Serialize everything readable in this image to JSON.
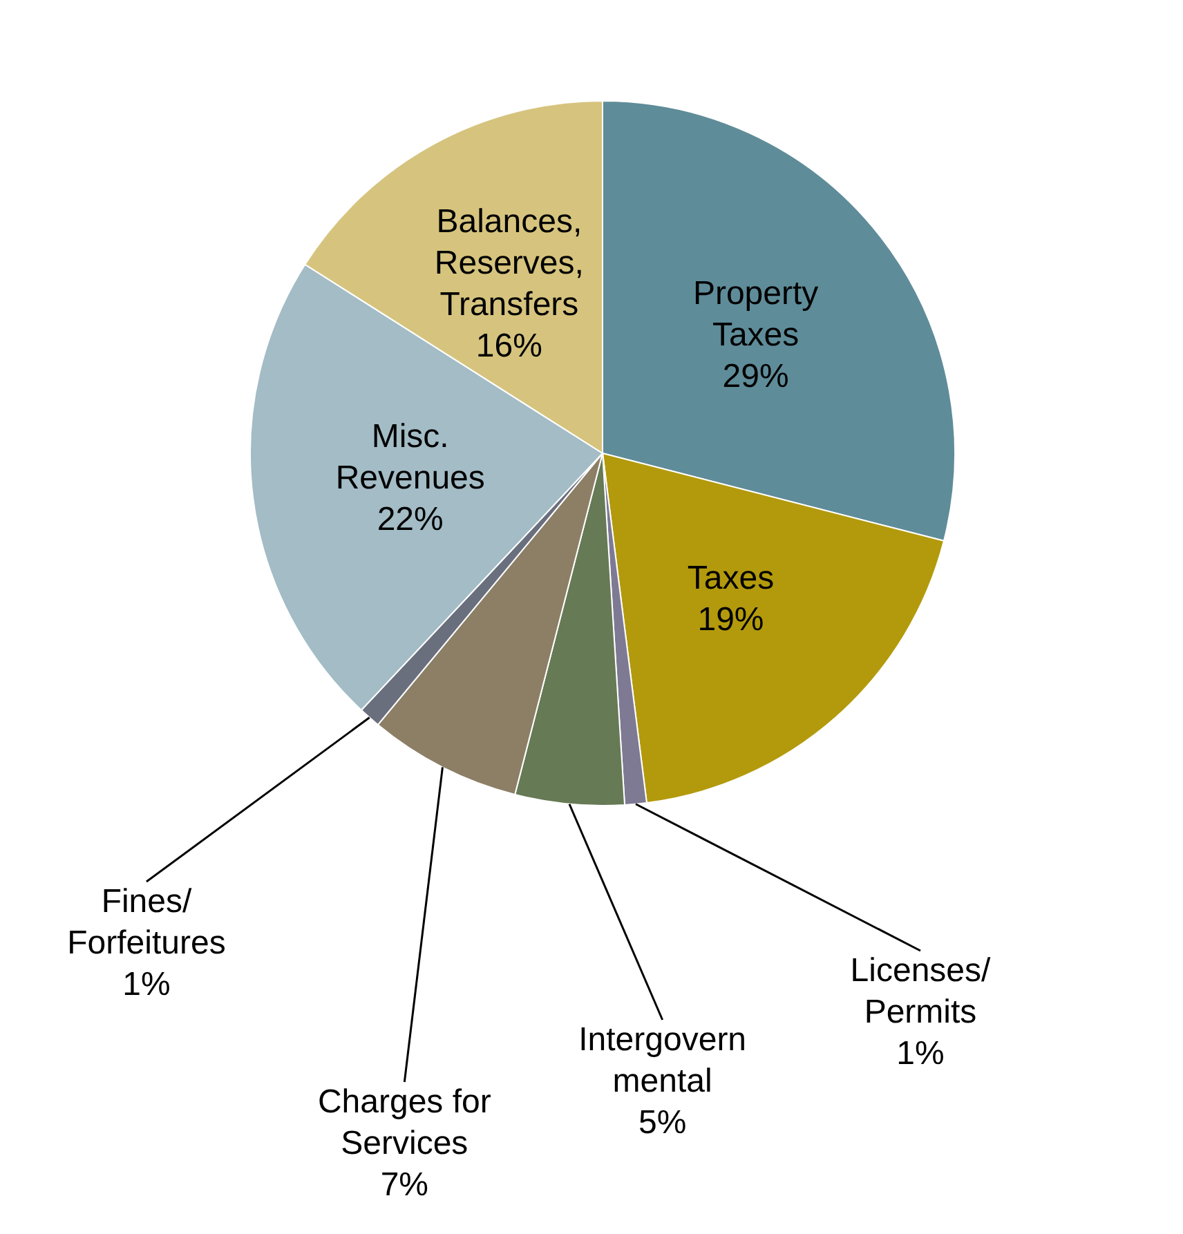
{
  "chart_data": {
    "type": "pie",
    "categories": [
      "Property\nTaxes",
      "Taxes",
      "Licenses/\nPermits",
      "Intergovern\nmental",
      "Charges for\nServices",
      "Fines/\nForfeitures",
      "Misc.\nRevenues",
      "Balances,\nReserves,\nTransfers"
    ],
    "values": [
      29,
      19,
      1,
      5,
      7,
      1,
      22,
      16
    ],
    "value_labels": [
      "29%",
      "19%",
      "1%",
      "5%",
      "7%",
      "1%",
      "22%",
      "16%"
    ],
    "colors": [
      "#5f8c99",
      "#b39a0c",
      "#7e7a94",
      "#667a55",
      "#8c7f66",
      "#6a6f7e",
      "#a3bcc6",
      "#d6c47e"
    ]
  }
}
